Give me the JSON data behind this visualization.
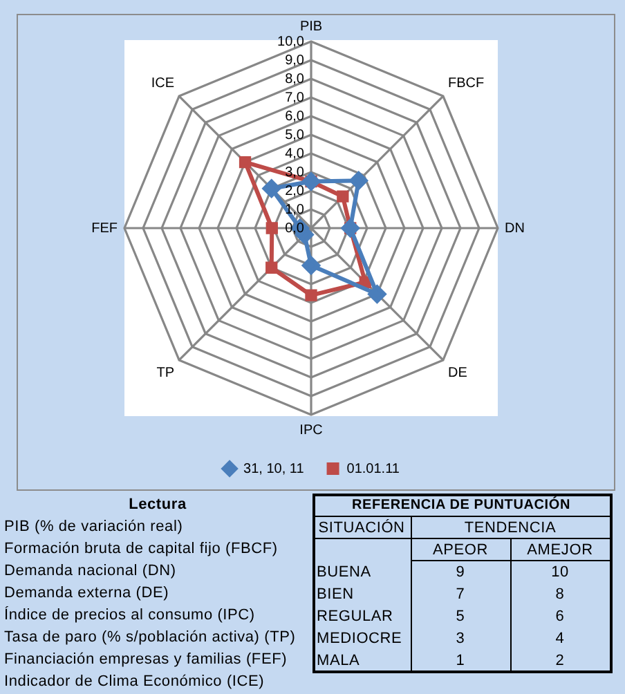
{
  "chart_data": {
    "type": "radar",
    "categories": [
      "PIB",
      "FBCF",
      "DN",
      "DE",
      "IPC",
      "TP",
      "FEF",
      "ICE"
    ],
    "series": [
      {
        "name": "31, 10, 11",
        "color": "#4a7ebb",
        "marker": "diamond",
        "values": [
          2.5,
          3.6,
          2.1,
          5.0,
          2.0,
          0.5,
          0.6,
          3.0
        ]
      },
      {
        "name": "01.01.11",
        "color": "#be4b48",
        "marker": "square",
        "values": [
          2.5,
          2.4,
          2.1,
          4.1,
          3.6,
          3.0,
          2.1,
          5.0
        ]
      }
    ],
    "ylim": [
      0,
      10
    ],
    "yticks": [
      {
        "value": 0,
        "label": "0,0"
      },
      {
        "value": 1,
        "label": "1,0"
      },
      {
        "value": 2,
        "label": "2,0"
      },
      {
        "value": 3,
        "label": "3,0"
      },
      {
        "value": 4,
        "label": "4,0"
      },
      {
        "value": 5,
        "label": "5,0"
      },
      {
        "value": 6,
        "label": "6,0"
      },
      {
        "value": 7,
        "label": "7,0"
      },
      {
        "value": 8,
        "label": "8,0"
      },
      {
        "value": 9,
        "label": "9,0"
      },
      {
        "value": 10,
        "label": "10,0"
      }
    ],
    "grid": true,
    "legend": "bottom",
    "annotations": [
      "Lectura",
      "PIB (% de variación real)",
      "Formación bruta de capital fijo (FBCF)",
      "Demanda nacional (DN)",
      "Demanda externa (DE)",
      "Índice de precios al consumo (IPC)",
      "Tasa de paro (% s/población activa) (TP)",
      "Financiación empresas y familias (FEF)",
      "Indicador de Clima Económico (ICE)",
      "REFERENCIA DE PUNTUACIÓN",
      "SITUACIÓN",
      "TENDENCIA",
      "APEOR",
      "AMEJOR",
      "BUENA",
      "9",
      "10",
      "BIEN",
      "7",
      "8",
      "REGULAR",
      "5",
      "6",
      "MEDIOCRE",
      "3",
      "4",
      "MALA",
      "1",
      "2"
    ]
  }
}
